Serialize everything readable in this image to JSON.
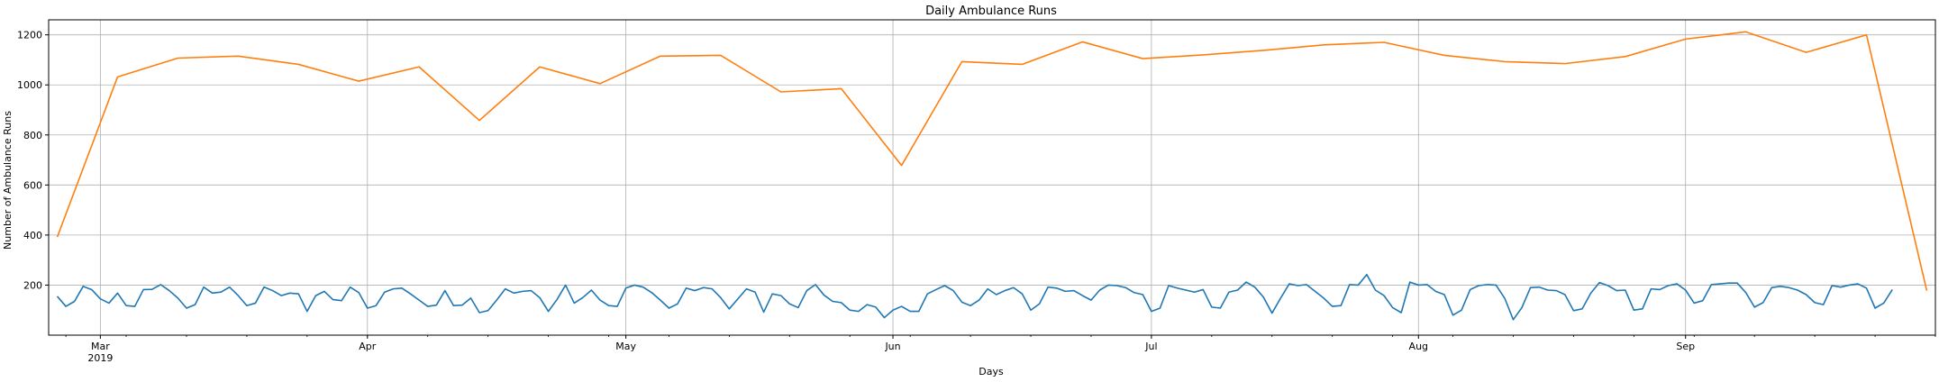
{
  "chart_data": {
    "type": "line",
    "title": "Daily Ambulance Runs",
    "xlabel": "Days",
    "ylabel": "Number of Ambulance Runs",
    "x_range": [
      "2019-02-23",
      "2019-09-30"
    ],
    "ylim": [
      0,
      1260
    ],
    "grid": true,
    "legend": "none",
    "y_ticks": [
      200,
      400,
      600,
      800,
      1000,
      1200
    ],
    "x_ticks": [
      {
        "date": "2019-03-01",
        "label": "Mar",
        "sublabel": "2019"
      },
      {
        "date": "2019-04-01",
        "label": "Apr",
        "sublabel": ""
      },
      {
        "date": "2019-05-01",
        "label": "May",
        "sublabel": ""
      },
      {
        "date": "2019-06-01",
        "label": "Jun",
        "sublabel": ""
      },
      {
        "date": "2019-07-01",
        "label": "Jul",
        "sublabel": ""
      },
      {
        "date": "2019-08-01",
        "label": "Aug",
        "sublabel": ""
      },
      {
        "date": "2019-09-01",
        "label": "Sep",
        "sublabel": ""
      }
    ],
    "colors": {
      "daily": "#1f77b4",
      "weekly": "#ff7f0e",
      "grid": "#b0b0b0"
    },
    "series": [
      {
        "color": "#1f77b4",
        "start_date": "2019-02-24",
        "values": [
          155,
          115,
          135,
          195,
          182,
          145,
          128,
          168,
          118,
          115,
          182,
          183,
          202,
          178,
          148,
          108,
          122,
          192,
          168,
          172,
          192,
          158,
          118,
          128,
          192,
          178,
          158,
          168,
          165,
          95,
          158,
          175,
          142,
          138,
          192,
          170,
          108,
          118,
          172,
          185,
          188,
          165,
          140,
          115,
          120,
          178,
          118,
          120,
          148,
          90,
          98,
          140,
          185,
          168,
          175,
          178,
          150,
          95,
          142,
          200,
          128,
          150,
          180,
          140,
          118,
          115,
          188,
          200,
          192,
          170,
          140,
          108,
          125,
          188,
          178,
          190,
          185,
          150,
          105,
          145,
          185,
          172,
          92,
          165,
          158,
          125,
          110,
          178,
          202,
          160,
          135,
          130,
          100,
          95,
          122,
          112,
          70,
          100,
          115,
          95,
          95,
          165,
          182,
          198,
          178,
          132,
          118,
          140,
          185,
          162,
          178,
          190,
          165,
          100,
          125,
          192,
          188,
          175,
          178,
          158,
          140,
          180,
          200,
          198,
          190,
          170,
          162,
          95,
          108,
          198,
          188,
          180,
          172,
          182,
          112,
          108,
          172,
          180,
          212,
          192,
          152,
          88,
          148,
          205,
          198,
          202,
          175,
          148,
          115,
          118,
          202,
          200,
          242,
          180,
          158,
          110,
          90,
          212,
          200,
          202,
          175,
          162,
          80,
          100,
          182,
          198,
          202,
          200,
          148,
          62,
          110,
          190,
          192,
          180,
          178,
          162,
          98,
          105,
          168,
          210,
          198,
          178,
          180,
          100,
          105,
          185,
          182,
          198,
          205,
          180,
          128,
          138,
          202,
          205,
          208,
          208,
          170,
          112,
          130,
          190,
          195,
          190,
          180,
          162,
          130,
          122,
          198,
          192,
          200,
          205,
          188,
          108,
          128,
          182
        ]
      },
      {
        "color": "#ff7f0e",
        "start_date": "2019-02-24",
        "step_days": 7,
        "values": [
          392,
          1032,
          1107,
          1115,
          1082,
          1015,
          1072,
          858,
          1072,
          1005,
          1115,
          1118,
          972,
          985,
          678,
          1093,
          1082,
          1172,
          1105,
          1120,
          1138,
          1160,
          1170,
          1118,
          1093,
          1085,
          1113,
          1183,
          1212,
          1130,
          1200,
          178
        ]
      }
    ]
  }
}
